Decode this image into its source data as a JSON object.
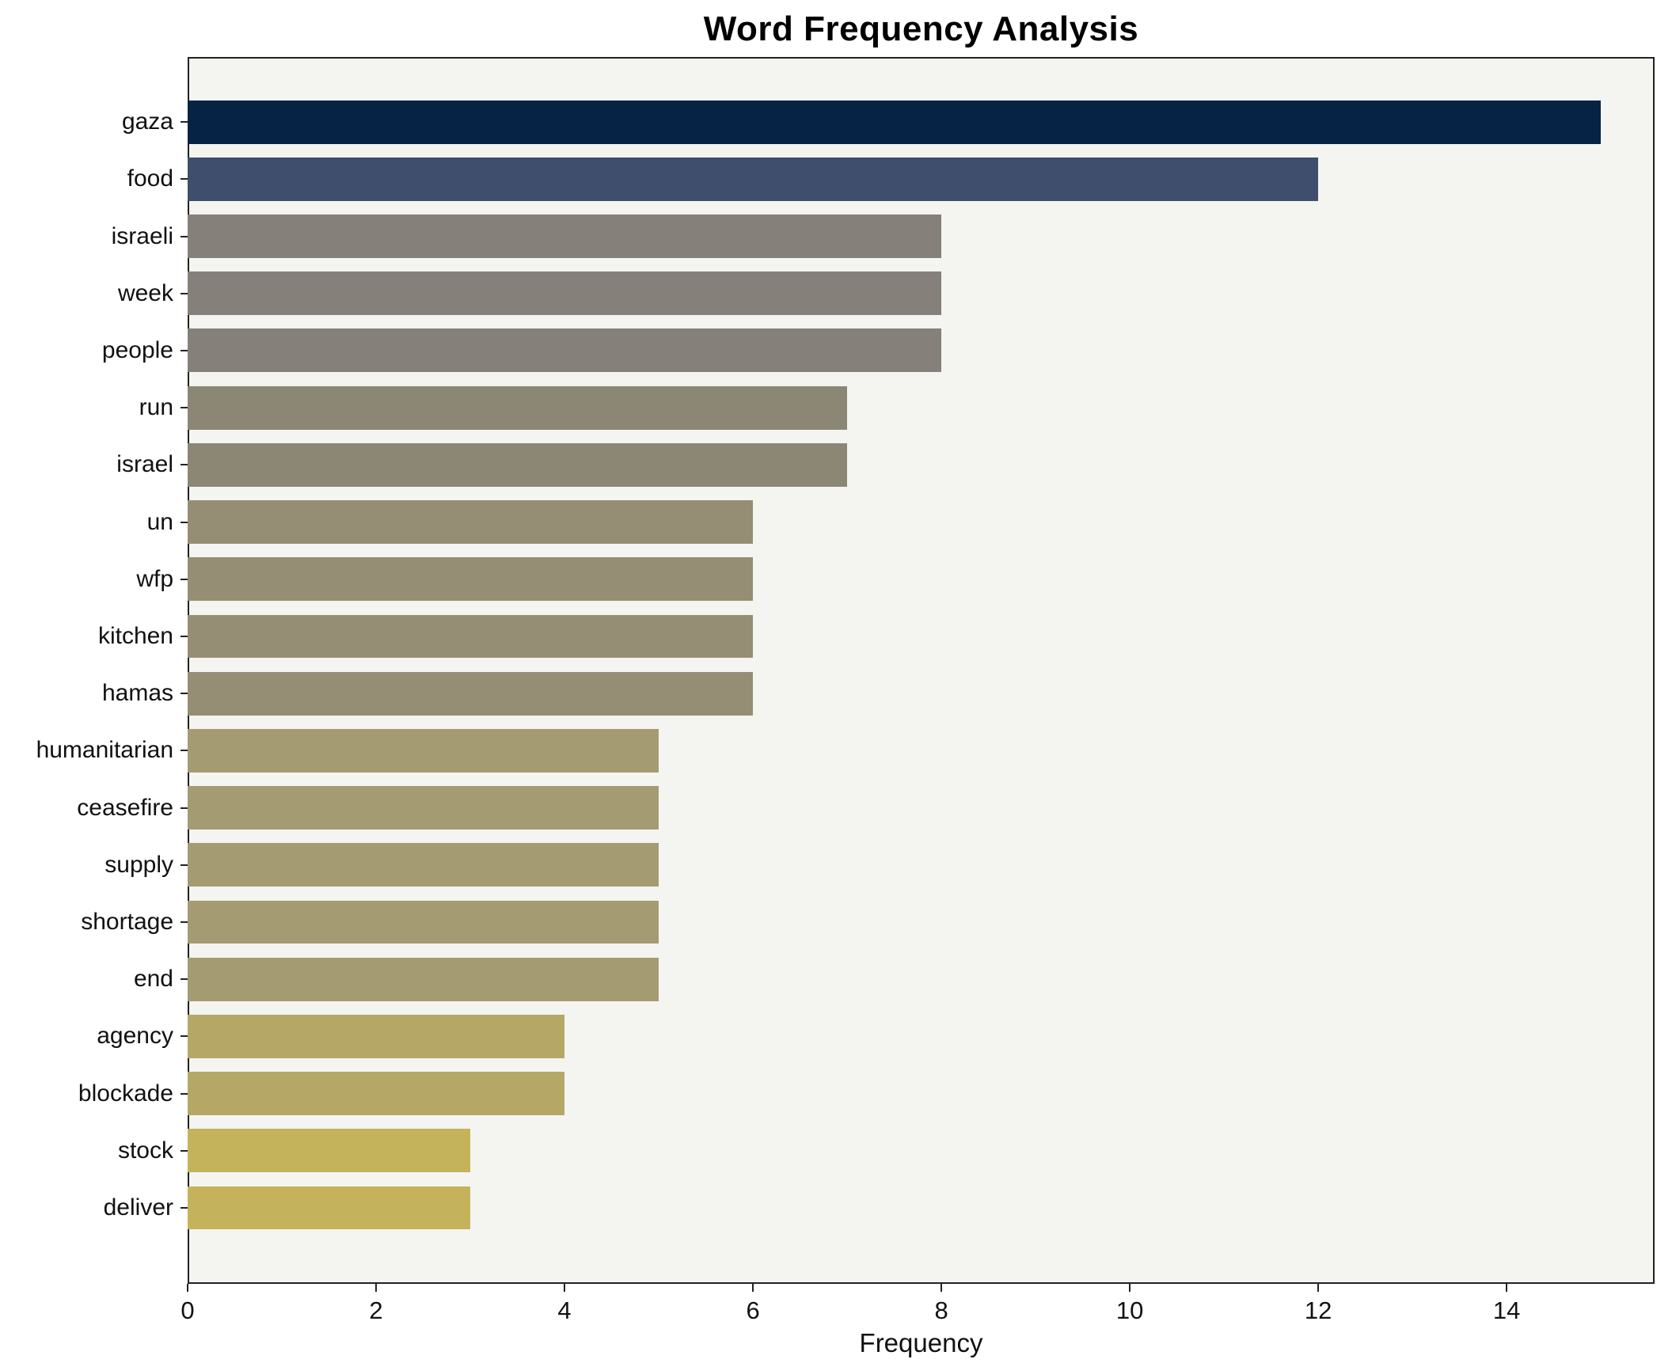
{
  "title": "Word Frequency Analysis",
  "chart_data": {
    "type": "bar",
    "orientation": "horizontal",
    "title": "Word Frequency Analysis",
    "xlabel": "Frequency",
    "ylabel": "",
    "categories": [
      "gaza",
      "food",
      "israeli",
      "week",
      "people",
      "run",
      "israel",
      "un",
      "wfp",
      "kitchen",
      "hamas",
      "humanitarian",
      "ceasefire",
      "supply",
      "shortage",
      "end",
      "agency",
      "blockade",
      "stock",
      "deliver"
    ],
    "values": [
      15,
      12,
      8,
      8,
      8,
      7,
      7,
      6,
      6,
      6,
      6,
      5,
      5,
      5,
      5,
      5,
      4,
      4,
      3,
      3
    ],
    "bar_colors": [
      "#062245",
      "#3e4e6c",
      "#85807a",
      "#85807a",
      "#85807a",
      "#8c8675",
      "#8c8675",
      "#968e74",
      "#968e74",
      "#968e74",
      "#968e74",
      "#a59b72",
      "#a59b72",
      "#a59b72",
      "#a59b72",
      "#a59b72",
      "#b5a765",
      "#b5a765",
      "#c5b35c",
      "#c5b35c"
    ],
    "xlim": [
      0,
      15.57
    ],
    "xticks": [
      0,
      2,
      4,
      6,
      8,
      10,
      12,
      14
    ],
    "grid": false,
    "legend_position": "none",
    "plot_background": "#f4f4f1",
    "figure_background": "#ffffff"
  }
}
